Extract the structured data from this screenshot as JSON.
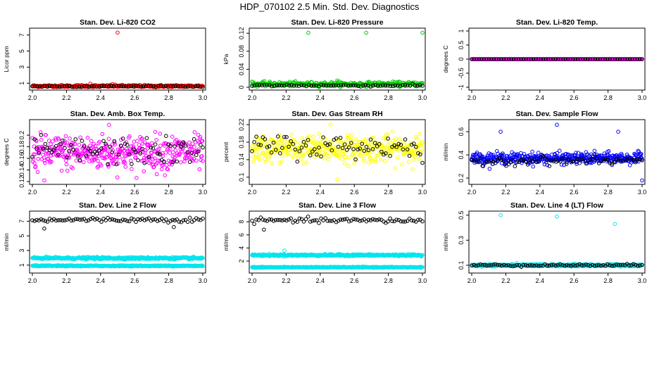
{
  "figure": {
    "title": "HDP_070102  2.5 Min. Std. Dev. Diagnostics"
  },
  "colors": {
    "black": "#000000",
    "red": "#ff0000",
    "green": "#00cc00",
    "magenta": "#ff00ff",
    "yellow": "#ffff00",
    "blue": "#0000ff",
    "cyan": "#00e5ee"
  },
  "chart_data": [
    {
      "type": "scatter",
      "title": "Stan. Dev. Li-820 CO2",
      "xlabel": "",
      "ylabel": "Licor ppm",
      "xlim": [
        2.0,
        3.0
      ],
      "ylim": [
        0.5,
        7.5
      ],
      "xticks": [
        "2.0",
        "2.2",
        "2.4",
        "2.6",
        "2.8",
        "3.0"
      ],
      "yticks": [
        1,
        3,
        5,
        7
      ],
      "series": [
        {
          "name": "primary",
          "color": "#ff0000",
          "baseline": 0.65,
          "noise": 0.12,
          "n": 300,
          "spikes": [
            [
              2.5,
              7.3
            ],
            [
              2.34,
              0.95
            ],
            [
              2.47,
              0.9
            ]
          ]
        },
        {
          "name": "secondary",
          "color": "#000000",
          "baseline": 0.62,
          "noise": 0.08,
          "n": 70,
          "spikes": []
        }
      ]
    },
    {
      "type": "scatter",
      "title": "Stan. Dev. Li-820 Pressure",
      "xlabel": "",
      "ylabel": "kPa",
      "xlim": [
        2.0,
        3.0
      ],
      "ylim": [
        0.0,
        0.125
      ],
      "xticks": [
        "2.0",
        "2.2",
        "2.4",
        "2.6",
        "2.8",
        "3.0"
      ],
      "yticks": [
        0.0,
        0.04,
        0.08,
        0.12
      ],
      "series": [
        {
          "name": "primary",
          "color": "#00cc00",
          "baseline": 0.007,
          "noise": 0.004,
          "n": 300,
          "spikes": [
            [
              2.33,
              0.121
            ],
            [
              2.67,
              0.121
            ],
            [
              3.0,
              0.121
            ],
            [
              2.5,
              0.015
            ]
          ]
        },
        {
          "name": "secondary",
          "color": "#000000",
          "baseline": 0.004,
          "noise": 0.002,
          "n": 70,
          "spikes": []
        }
      ]
    },
    {
      "type": "scatter",
      "title": "Stan. Dev. Li-820 Temp.",
      "xlabel": "",
      "ylabel": "degrees C",
      "xlim": [
        2.0,
        3.0
      ],
      "ylim": [
        -1.0,
        1.0
      ],
      "xticks": [
        "2.0",
        "2.2",
        "2.4",
        "2.6",
        "2.8",
        "3.0"
      ],
      "yticks": [
        -1.0,
        -0.5,
        0.0,
        0.5,
        1.0
      ],
      "series": [
        {
          "name": "primary",
          "color": "#ff00ff",
          "baseline": 0.0,
          "noise": 0.0,
          "n": 300,
          "spikes": []
        },
        {
          "name": "secondary",
          "color": "#000000",
          "baseline": 0.0,
          "noise": 0.0,
          "n": 70,
          "spikes": []
        }
      ]
    },
    {
      "type": "scatter",
      "title": "Stan. Dev. Amb. Box Temp.",
      "xlabel": "",
      "ylabel": "degrees C",
      "xlim": [
        2.0,
        3.0
      ],
      "ylim": [
        0.12,
        0.222
      ],
      "xticks": [
        "2.0",
        "2.2",
        "2.4",
        "2.6",
        "2.8",
        "3.0"
      ],
      "yticks": [
        0.12,
        0.14,
        0.16,
        0.18,
        0.2
      ],
      "series": [
        {
          "name": "primary",
          "color": "#ff00ff",
          "baseline": 0.17,
          "noise": 0.025,
          "n": 420,
          "spikes": [
            [
              2.45,
              0.218
            ],
            [
              2.07,
              0.122
            ]
          ]
        },
        {
          "name": "secondary",
          "color": "#000000",
          "baseline": 0.172,
          "noise": 0.02,
          "n": 80,
          "spikes": []
        }
      ]
    },
    {
      "type": "scatter",
      "title": "Stan. Dev. Gas Stream RH",
      "xlabel": "",
      "ylabel": "percent",
      "xlim": [
        2.0,
        3.0
      ],
      "ylim": [
        0.09,
        0.225
      ],
      "xticks": [
        "2.0",
        "2.2",
        "2.4",
        "2.6",
        "2.8",
        "3.0"
      ],
      "yticks": [
        0.1,
        0.14,
        0.18,
        0.22
      ],
      "series": [
        {
          "name": "primary",
          "color": "#ffff00",
          "baseline": 0.165,
          "noise": 0.025,
          "n": 420,
          "spikes": [
            [
              2.46,
              0.22
            ],
            [
              2.5,
              0.095
            ]
          ]
        },
        {
          "name": "secondary",
          "color": "#000000",
          "baseline": 0.17,
          "noise": 0.022,
          "n": 80,
          "spikes": []
        }
      ]
    },
    {
      "type": "scatter",
      "title": "Stan. Dev. Sample Flow",
      "xlabel": "",
      "ylabel": "ml/min",
      "xlim": [
        2.0,
        3.0
      ],
      "ylim": [
        0.17,
        0.68
      ],
      "xticks": [
        "2.0",
        "2.2",
        "2.4",
        "2.6",
        "2.8",
        "3.0"
      ],
      "yticks": [
        0.2,
        0.4,
        0.6
      ],
      "series": [
        {
          "name": "primary",
          "color": "#0000ff",
          "baseline": 0.37,
          "noise": 0.04,
          "n": 420,
          "spikes": [
            [
              2.5,
              0.66
            ],
            [
              2.17,
              0.6
            ],
            [
              2.86,
              0.6
            ],
            [
              3.0,
              0.18
            ]
          ]
        },
        {
          "name": "secondary",
          "color": "#000000",
          "baseline": 0.35,
          "noise": 0.03,
          "n": 80,
          "spikes": []
        }
      ]
    },
    {
      "type": "scatter",
      "title": "Stan. Dev. Line 2 Flow",
      "xlabel": "",
      "ylabel": "ml/min",
      "xlim": [
        2.0,
        3.0
      ],
      "ylim": [
        0.3,
        8.0
      ],
      "xticks": [
        "2.0",
        "2.2",
        "2.4",
        "2.6",
        "2.8",
        "3.0"
      ],
      "yticks": [
        1,
        3,
        5,
        7
      ],
      "series": [
        {
          "name": "band-upper",
          "color": "#00e5ee",
          "baseline": 1.95,
          "noise": 0.12,
          "n": 420,
          "spikes": []
        },
        {
          "name": "band-lower",
          "color": "#00e5ee",
          "baseline": 0.9,
          "noise": 0.06,
          "n": 420,
          "spikes": []
        },
        {
          "name": "secondary",
          "color": "#000000",
          "baseline": 7.2,
          "noise": 0.25,
          "n": 80,
          "spikes": [
            [
              2.07,
              6.0
            ],
            [
              2.83,
              6.2
            ]
          ]
        }
      ]
    },
    {
      "type": "scatter",
      "title": "Stan. Dev. Line 3 Flow",
      "xlabel": "",
      "ylabel": "ml/min",
      "xlim": [
        2.0,
        3.0
      ],
      "ylim": [
        0.6,
        9.2
      ],
      "xticks": [
        "2.0",
        "2.2",
        "2.4",
        "2.6",
        "2.8",
        "3.0"
      ],
      "yticks": [
        2,
        4,
        6,
        8
      ],
      "series": [
        {
          "name": "band-upper",
          "color": "#00e5ee",
          "baseline": 2.9,
          "noise": 0.12,
          "n": 420,
          "spikes": [
            [
              2.19,
              3.6
            ]
          ]
        },
        {
          "name": "band-lower",
          "color": "#00e5ee",
          "baseline": 1.05,
          "noise": 0.06,
          "n": 420,
          "spikes": []
        },
        {
          "name": "secondary",
          "color": "#000000",
          "baseline": 8.2,
          "noise": 0.3,
          "n": 80,
          "spikes": [
            [
              2.07,
              6.8
            ]
          ]
        }
      ]
    },
    {
      "type": "scatter",
      "title": "Stan. Dev. Line 4 (LT) Flow",
      "xlabel": "",
      "ylabel": "ml/min",
      "xlim": [
        2.0,
        3.0
      ],
      "ylim": [
        0.06,
        0.51
      ],
      "xticks": [
        "2.0",
        "2.2",
        "2.4",
        "2.6",
        "2.8",
        "3.0"
      ],
      "yticks": [
        0.1,
        0.3,
        0.5
      ],
      "series": [
        {
          "name": "primary",
          "color": "#00e5ee",
          "baseline": 0.1,
          "noise": 0.008,
          "n": 420,
          "spikes": [
            [
              2.17,
              0.5
            ],
            [
              2.5,
              0.49
            ],
            [
              2.84,
              0.43
            ]
          ]
        },
        {
          "name": "secondary",
          "color": "#000000",
          "baseline": 0.1,
          "noise": 0.007,
          "n": 80,
          "spikes": []
        }
      ]
    }
  ]
}
